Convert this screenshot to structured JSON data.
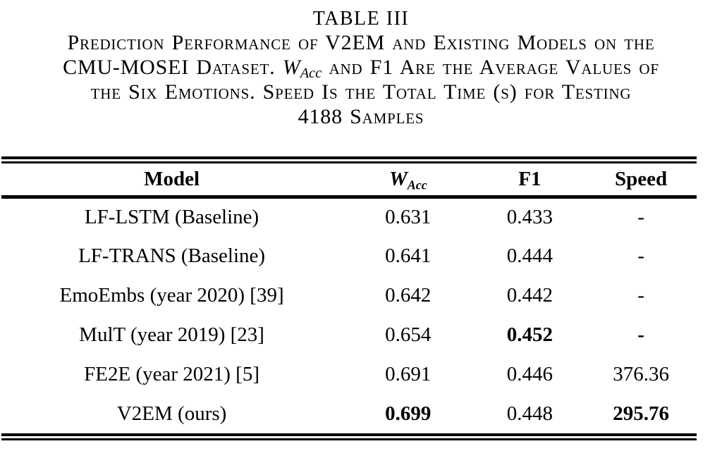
{
  "page": {
    "background_color": "#ffffff",
    "text_color": "#000000"
  },
  "caption": {
    "title": "TABLE III",
    "line1": "Prediction Performance of V2EM and Existing Models on the",
    "line2_pre": "CMU-MOSEI Dataset. ",
    "line2_math_base": "W",
    "line2_math_sub": "Acc",
    "line2_post": " and F1 Are the Average Values of",
    "line3": "the Six Emotions. Speed Is the Total Time (s) for Testing",
    "line4": "4188 Samples"
  },
  "table": {
    "columns": [
      {
        "label": "Model"
      },
      {
        "base": "W",
        "sub": "Acc"
      },
      {
        "label": "F1"
      },
      {
        "label": "Speed"
      }
    ],
    "rows": [
      {
        "model": "LF-LSTM (Baseline)",
        "wacc": "0.631",
        "f1": "0.433",
        "speed": "-",
        "bold_cells": []
      },
      {
        "model": "LF-TRANS (Baseline)",
        "wacc": "0.641",
        "f1": "0.444",
        "speed": "-",
        "bold_cells": []
      },
      {
        "model": "EmoEmbs (year 2020) [39]",
        "wacc": "0.642",
        "f1": "0.442",
        "speed": "-",
        "bold_cells": []
      },
      {
        "model": "MulT (year 2019) [23]",
        "wacc": "0.654",
        "f1": "0.452",
        "speed": "-",
        "bold_cells": [
          "f1",
          "speed"
        ]
      },
      {
        "model": "FE2E (year 2021) [5]",
        "wacc": "0.691",
        "f1": "0.446",
        "speed": "376.36",
        "bold_cells": []
      },
      {
        "model": "V2EM (ours)",
        "wacc": "0.699",
        "f1": "0.448",
        "speed": "295.76",
        "bold_cells": [
          "wacc",
          "speed"
        ]
      }
    ]
  }
}
